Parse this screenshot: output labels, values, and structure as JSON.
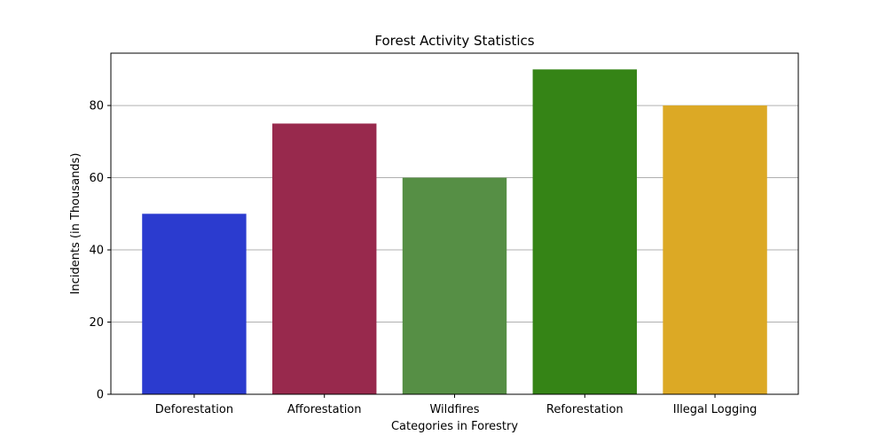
{
  "chart_data": {
    "type": "bar",
    "title": "Forest Activity Statistics",
    "xlabel": "Categories in Forestry",
    "ylabel": "Incidents (in Thousands)",
    "categories": [
      "Deforestation",
      "Afforestation",
      "Wildfires",
      "Reforestation",
      "Illegal Logging"
    ],
    "values": [
      50,
      75,
      60,
      90,
      80
    ],
    "colors": [
      "#2b3bcf",
      "#98294d",
      "#568f45",
      "#358416",
      "#dca925"
    ],
    "ylim": [
      0,
      94.5
    ],
    "yticks": [
      0,
      20,
      40,
      60,
      80
    ],
    "grid": "y-major",
    "legend": "none"
  }
}
